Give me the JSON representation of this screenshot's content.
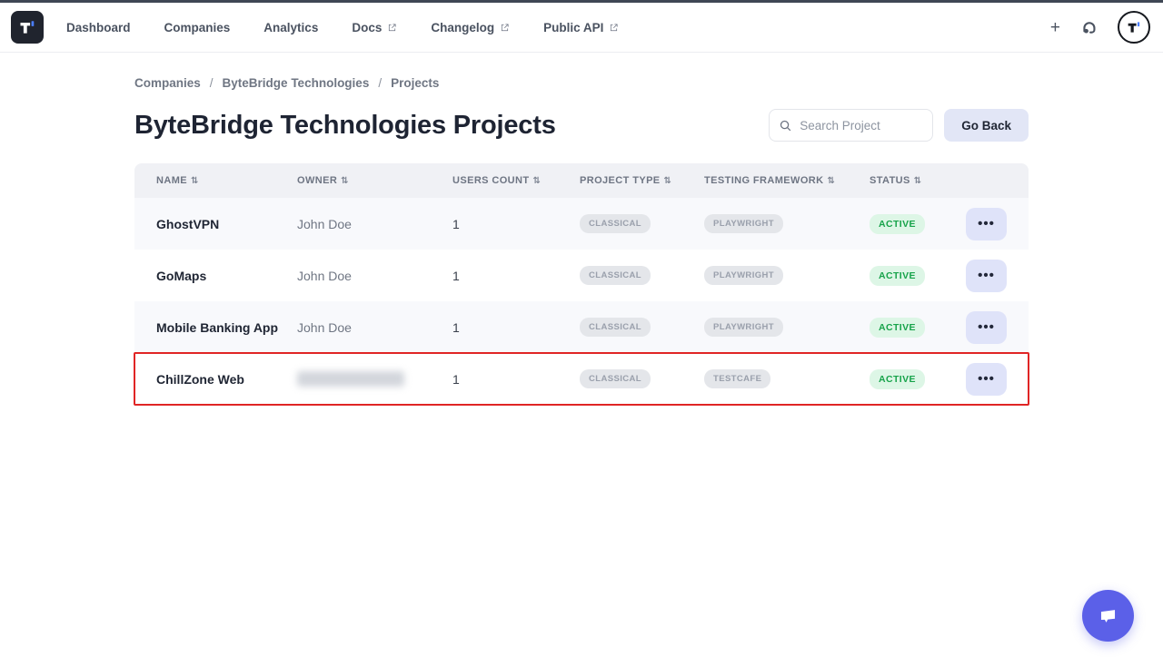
{
  "window": {
    "top_bar_color": "#3f4754"
  },
  "nav": {
    "logo_glyph": "T",
    "plus_glyph": "+",
    "items": [
      {
        "label": "Dashboard",
        "external": false
      },
      {
        "label": "Companies",
        "external": false
      },
      {
        "label": "Analytics",
        "external": false
      },
      {
        "label": "Docs",
        "external": true
      },
      {
        "label": "Changelog",
        "external": true
      },
      {
        "label": "Public API",
        "external": true
      }
    ]
  },
  "breadcrumb": {
    "separator": "/",
    "items": [
      "Companies",
      "ByteBridge Technologies",
      "Projects"
    ]
  },
  "page": {
    "title": "ByteBridge Technologies Projects"
  },
  "toolbar": {
    "search_placeholder": "Search Project",
    "go_back_label": "Go Back"
  },
  "table": {
    "sort_icon": "⇅",
    "row_actions_icon": "•••",
    "columns": [
      "NAME",
      "OWNER",
      "USERS COUNT",
      "PROJECT TYPE",
      "TESTING FRAMEWORK",
      "STATUS"
    ],
    "rows": [
      {
        "name": "GhostVPN",
        "owner": "John Doe",
        "users_count": "1",
        "project_type": "CLASSICAL",
        "testing_framework": "PLAYWRIGHT",
        "status": "ACTIVE",
        "highlighted": false,
        "owner_redacted": false
      },
      {
        "name": "GoMaps",
        "owner": "John Doe",
        "users_count": "1",
        "project_type": "CLASSICAL",
        "testing_framework": "PLAYWRIGHT",
        "status": "ACTIVE",
        "highlighted": false,
        "owner_redacted": false
      },
      {
        "name": "Mobile Banking App",
        "owner": "John Doe",
        "users_count": "1",
        "project_type": "CLASSICAL",
        "testing_framework": "PLAYWRIGHT",
        "status": "ACTIVE",
        "highlighted": false,
        "owner_redacted": false
      },
      {
        "name": "ChillZone Web",
        "owner": "",
        "users_count": "1",
        "project_type": "CLASSICAL",
        "testing_framework": "TESTCAFE",
        "status": "ACTIVE",
        "highlighted": true,
        "owner_redacted": true
      }
    ]
  },
  "colors": {
    "accent_blue": "#4a7dfc",
    "highlight_red": "#e02525",
    "status_active_bg": "#ddf6e6",
    "status_active_text": "#17a34a",
    "type_badge_bg": "#e4e6ea",
    "type_badge_text": "#9aa0ac",
    "fab_bg": "#5b60e8"
  }
}
